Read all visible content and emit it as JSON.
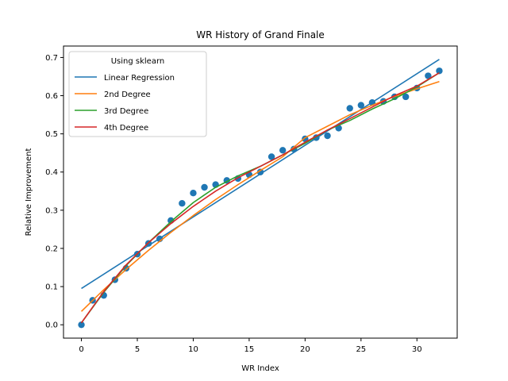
{
  "chart_data": {
    "type": "scatter",
    "title": "WR History of Grand Finale",
    "xlabel": "WR Index",
    "ylabel": "Relative Improvement",
    "xlim": [
      -1.6,
      33.6
    ],
    "ylim": [
      -0.035,
      0.73
    ],
    "xticks": [
      0,
      5,
      10,
      15,
      20,
      25,
      30
    ],
    "xtick_labels": [
      "0",
      "5",
      "10",
      "15",
      "20",
      "25",
      "30"
    ],
    "yticks": [
      0.0,
      0.1,
      0.2,
      0.3,
      0.4,
      0.5,
      0.6,
      0.7
    ],
    "ytick_labels": [
      "0.0",
      "0.1",
      "0.2",
      "0.3",
      "0.4",
      "0.5",
      "0.6",
      "0.7"
    ],
    "grid": false,
    "legend": {
      "title": "Using sklearn",
      "placement": "upper-left"
    },
    "scatter": {
      "color": "#1f77b4",
      "x": [
        0,
        1,
        2,
        3,
        4,
        5,
        6,
        7,
        8,
        9,
        10,
        11,
        12,
        13,
        14,
        15,
        16,
        17,
        18,
        19,
        20,
        21,
        22,
        23,
        24,
        25,
        26,
        27,
        28,
        29,
        30,
        31,
        32
      ],
      "y": [
        0.0,
        0.064,
        0.077,
        0.118,
        0.148,
        0.185,
        0.213,
        0.225,
        0.273,
        0.318,
        0.345,
        0.36,
        0.367,
        0.378,
        0.383,
        0.393,
        0.4,
        0.44,
        0.457,
        0.46,
        0.487,
        0.49,
        0.495,
        0.515,
        0.567,
        0.575,
        0.582,
        0.585,
        0.597,
        0.597,
        0.62,
        0.652,
        0.665
      ]
    },
    "series": [
      {
        "name": "Linear Regression",
        "color": "#1f77b4",
        "x": [
          0,
          32
        ],
        "y": [
          0.095,
          0.695
        ]
      },
      {
        "name": "2nd Degree",
        "color": "#ff7f0e",
        "x": [
          0,
          2,
          4,
          6,
          8,
          10,
          12,
          14,
          16,
          18,
          20,
          22,
          24,
          26,
          28,
          30,
          32
        ],
        "y": [
          0.035,
          0.092,
          0.145,
          0.195,
          0.242,
          0.286,
          0.328,
          0.367,
          0.404,
          0.44,
          0.49,
          0.52,
          0.55,
          0.575,
          0.598,
          0.618,
          0.637
        ]
      },
      {
        "name": "3rd Degree",
        "color": "#2ca02c",
        "x": [
          0,
          2,
          4,
          6,
          8,
          10,
          12,
          14,
          16,
          18,
          20,
          22,
          24,
          26,
          28,
          30,
          32
        ],
        "y": [
          0.005,
          0.085,
          0.155,
          0.215,
          0.27,
          0.32,
          0.36,
          0.39,
          0.415,
          0.445,
          0.475,
          0.51,
          0.535,
          0.565,
          0.592,
          0.623,
          0.66
        ]
      },
      {
        "name": "4th Degree",
        "color": "#d62728",
        "x": [
          0,
          2,
          4,
          6,
          8,
          10,
          12,
          14,
          16,
          18,
          20,
          22,
          24,
          26,
          28,
          30,
          32
        ],
        "y": [
          0.005,
          0.087,
          0.157,
          0.215,
          0.265,
          0.31,
          0.35,
          0.385,
          0.415,
          0.445,
          0.478,
          0.51,
          0.54,
          0.57,
          0.6,
          0.625,
          0.66
        ]
      }
    ]
  }
}
